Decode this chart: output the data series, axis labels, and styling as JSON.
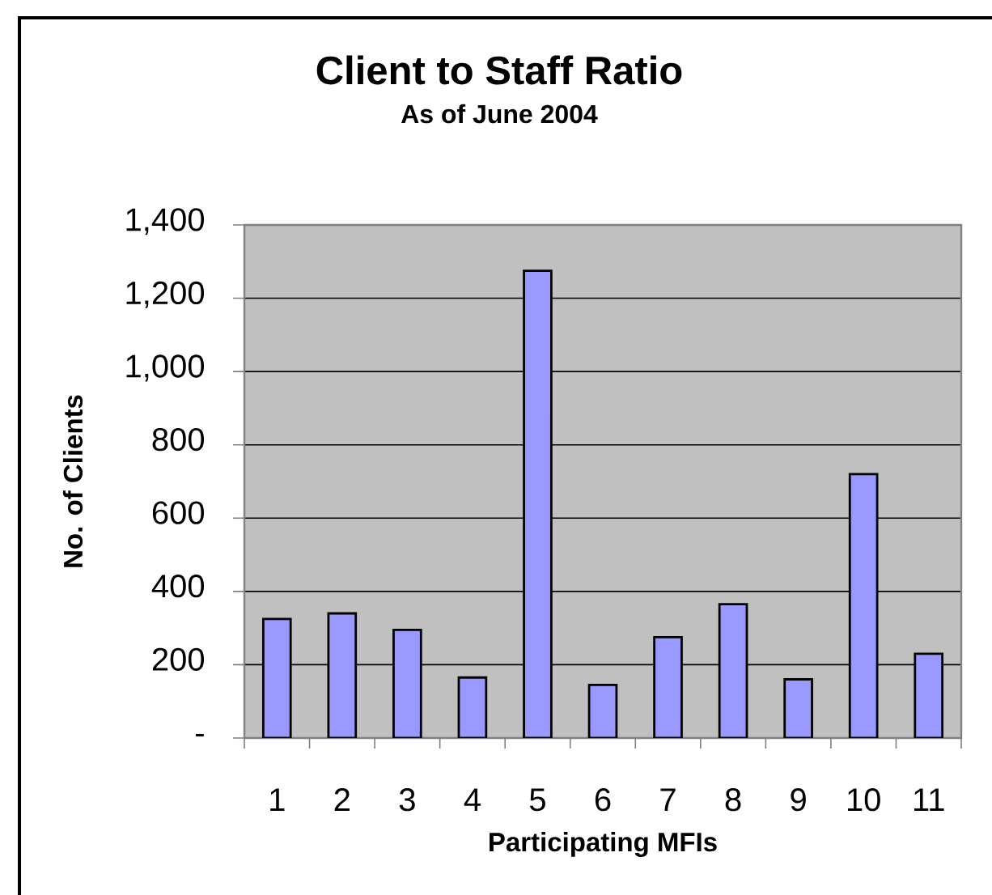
{
  "chart_data": {
    "type": "bar",
    "title": "Client to Staff Ratio",
    "subtitle": "As of June 2004",
    "xlabel": "Participating MFIs",
    "ylabel": "No. of Clients",
    "categories": [
      "1",
      "2",
      "3",
      "4",
      "5",
      "6",
      "7",
      "8",
      "9",
      "10",
      "11"
    ],
    "values": [
      325,
      340,
      295,
      165,
      1275,
      145,
      275,
      365,
      160,
      720,
      230
    ],
    "color": "#9999ff",
    "ylim": [
      0,
      1400
    ],
    "yticks": [
      {
        "value": 0,
        "label": "-"
      },
      200,
      400,
      600,
      800,
      {
        "value": 1000,
        "label": "1,000"
      },
      {
        "value": 1200,
        "label": "1,200"
      },
      {
        "value": 1400,
        "label": "1,400"
      }
    ],
    "grid": "y"
  }
}
